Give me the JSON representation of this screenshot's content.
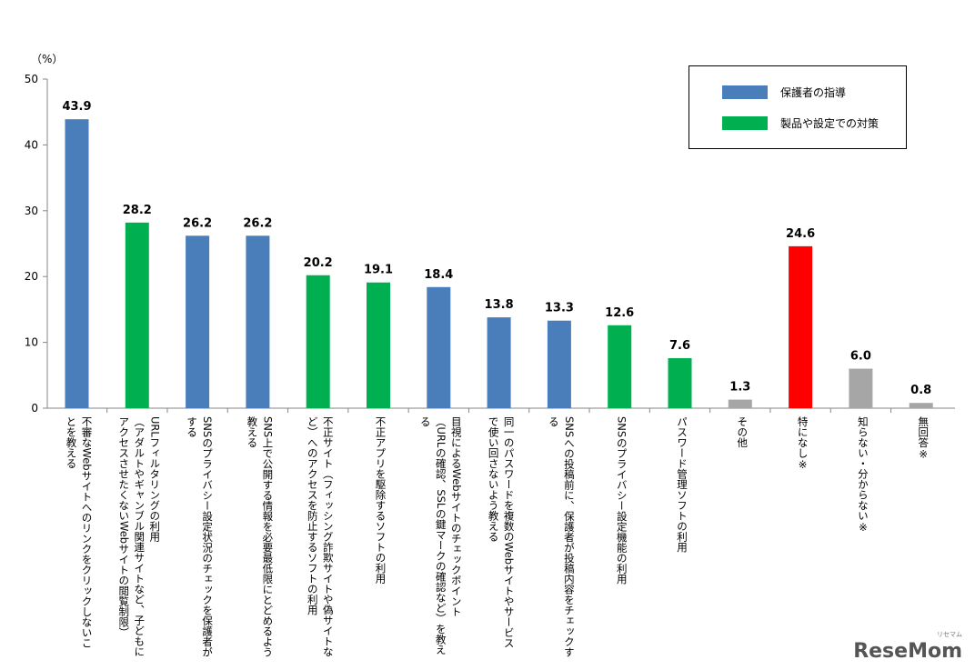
{
  "chart_data": {
    "type": "bar",
    "unit_label": "（%）",
    "ylim": [
      0,
      50
    ],
    "yticks": [
      "0",
      "10",
      "20",
      "30",
      "40",
      "50"
    ],
    "categories": [
      [
        "不審なWebサイトへのリンクをクリックしないこ",
        "とを教える"
      ],
      [
        "URLフィルタリングの利用",
        "（アダルトやギャンブル関連サイトなど、子どもに",
        "アクセスさせたくないWebサイトの閲覧制限）"
      ],
      [
        "SNSのプライバシー設定状況のチェックを保護者が",
        "する"
      ],
      [
        "SNS上で公開する情報を必要最低限にとどめるよう",
        "教える"
      ],
      [
        "不正サイト（フィッシング詐欺サイトや偽サイトな",
        "ど）へのアクセスを防止するソフトの利用"
      ],
      [
        "不正アプリを駆除するソフトの利用"
      ],
      [
        "目視によるWebサイトのチェックポイント",
        "（URLの確認、SSLの鍵マークの確認など）を教え",
        "る"
      ],
      [
        "同一のパスワードを複数のWebサイトやサービス",
        "で使い回さないよう教える"
      ],
      [
        "SNSへの投稿前に、保護者が投稿内容をチェックす",
        "る"
      ],
      [
        "SNSのプライバシー設定機能の利用"
      ],
      [
        "パスワード管理ソフトの利用"
      ],
      [
        "その他"
      ],
      [
        "特になし※"
      ],
      [
        "知らない・分からない※"
      ],
      [
        "無回答※"
      ]
    ],
    "values": [
      43.9,
      28.2,
      26.2,
      26.2,
      20.2,
      19.1,
      18.4,
      13.8,
      13.3,
      12.6,
      7.6,
      1.3,
      24.6,
      6.0,
      0.8
    ],
    "value_labels": [
      "43.9",
      "28.2",
      "26.2",
      "26.2",
      "20.2",
      "19.1",
      "18.4",
      "13.8",
      "13.3",
      "12.6",
      "7.6",
      "1.3",
      "24.6",
      "6.0",
      "0.8"
    ],
    "bar_colors": [
      "#4a7ebb",
      "#00b050",
      "#4a7ebb",
      "#4a7ebb",
      "#00b050",
      "#00b050",
      "#4a7ebb",
      "#4a7ebb",
      "#4a7ebb",
      "#00b050",
      "#00b050",
      "#a6a6a6",
      "#ff0000",
      "#a6a6a6",
      "#a6a6a6"
    ],
    "legend": [
      {
        "name": "保護者の指導",
        "color": "#4a7ebb"
      },
      {
        "name": "製品や設定での対策",
        "color": "#00b050"
      }
    ],
    "legend_position": "top-right",
    "grid": false
  },
  "watermark": {
    "text": "ReseMom",
    "small": "リセマム"
  }
}
